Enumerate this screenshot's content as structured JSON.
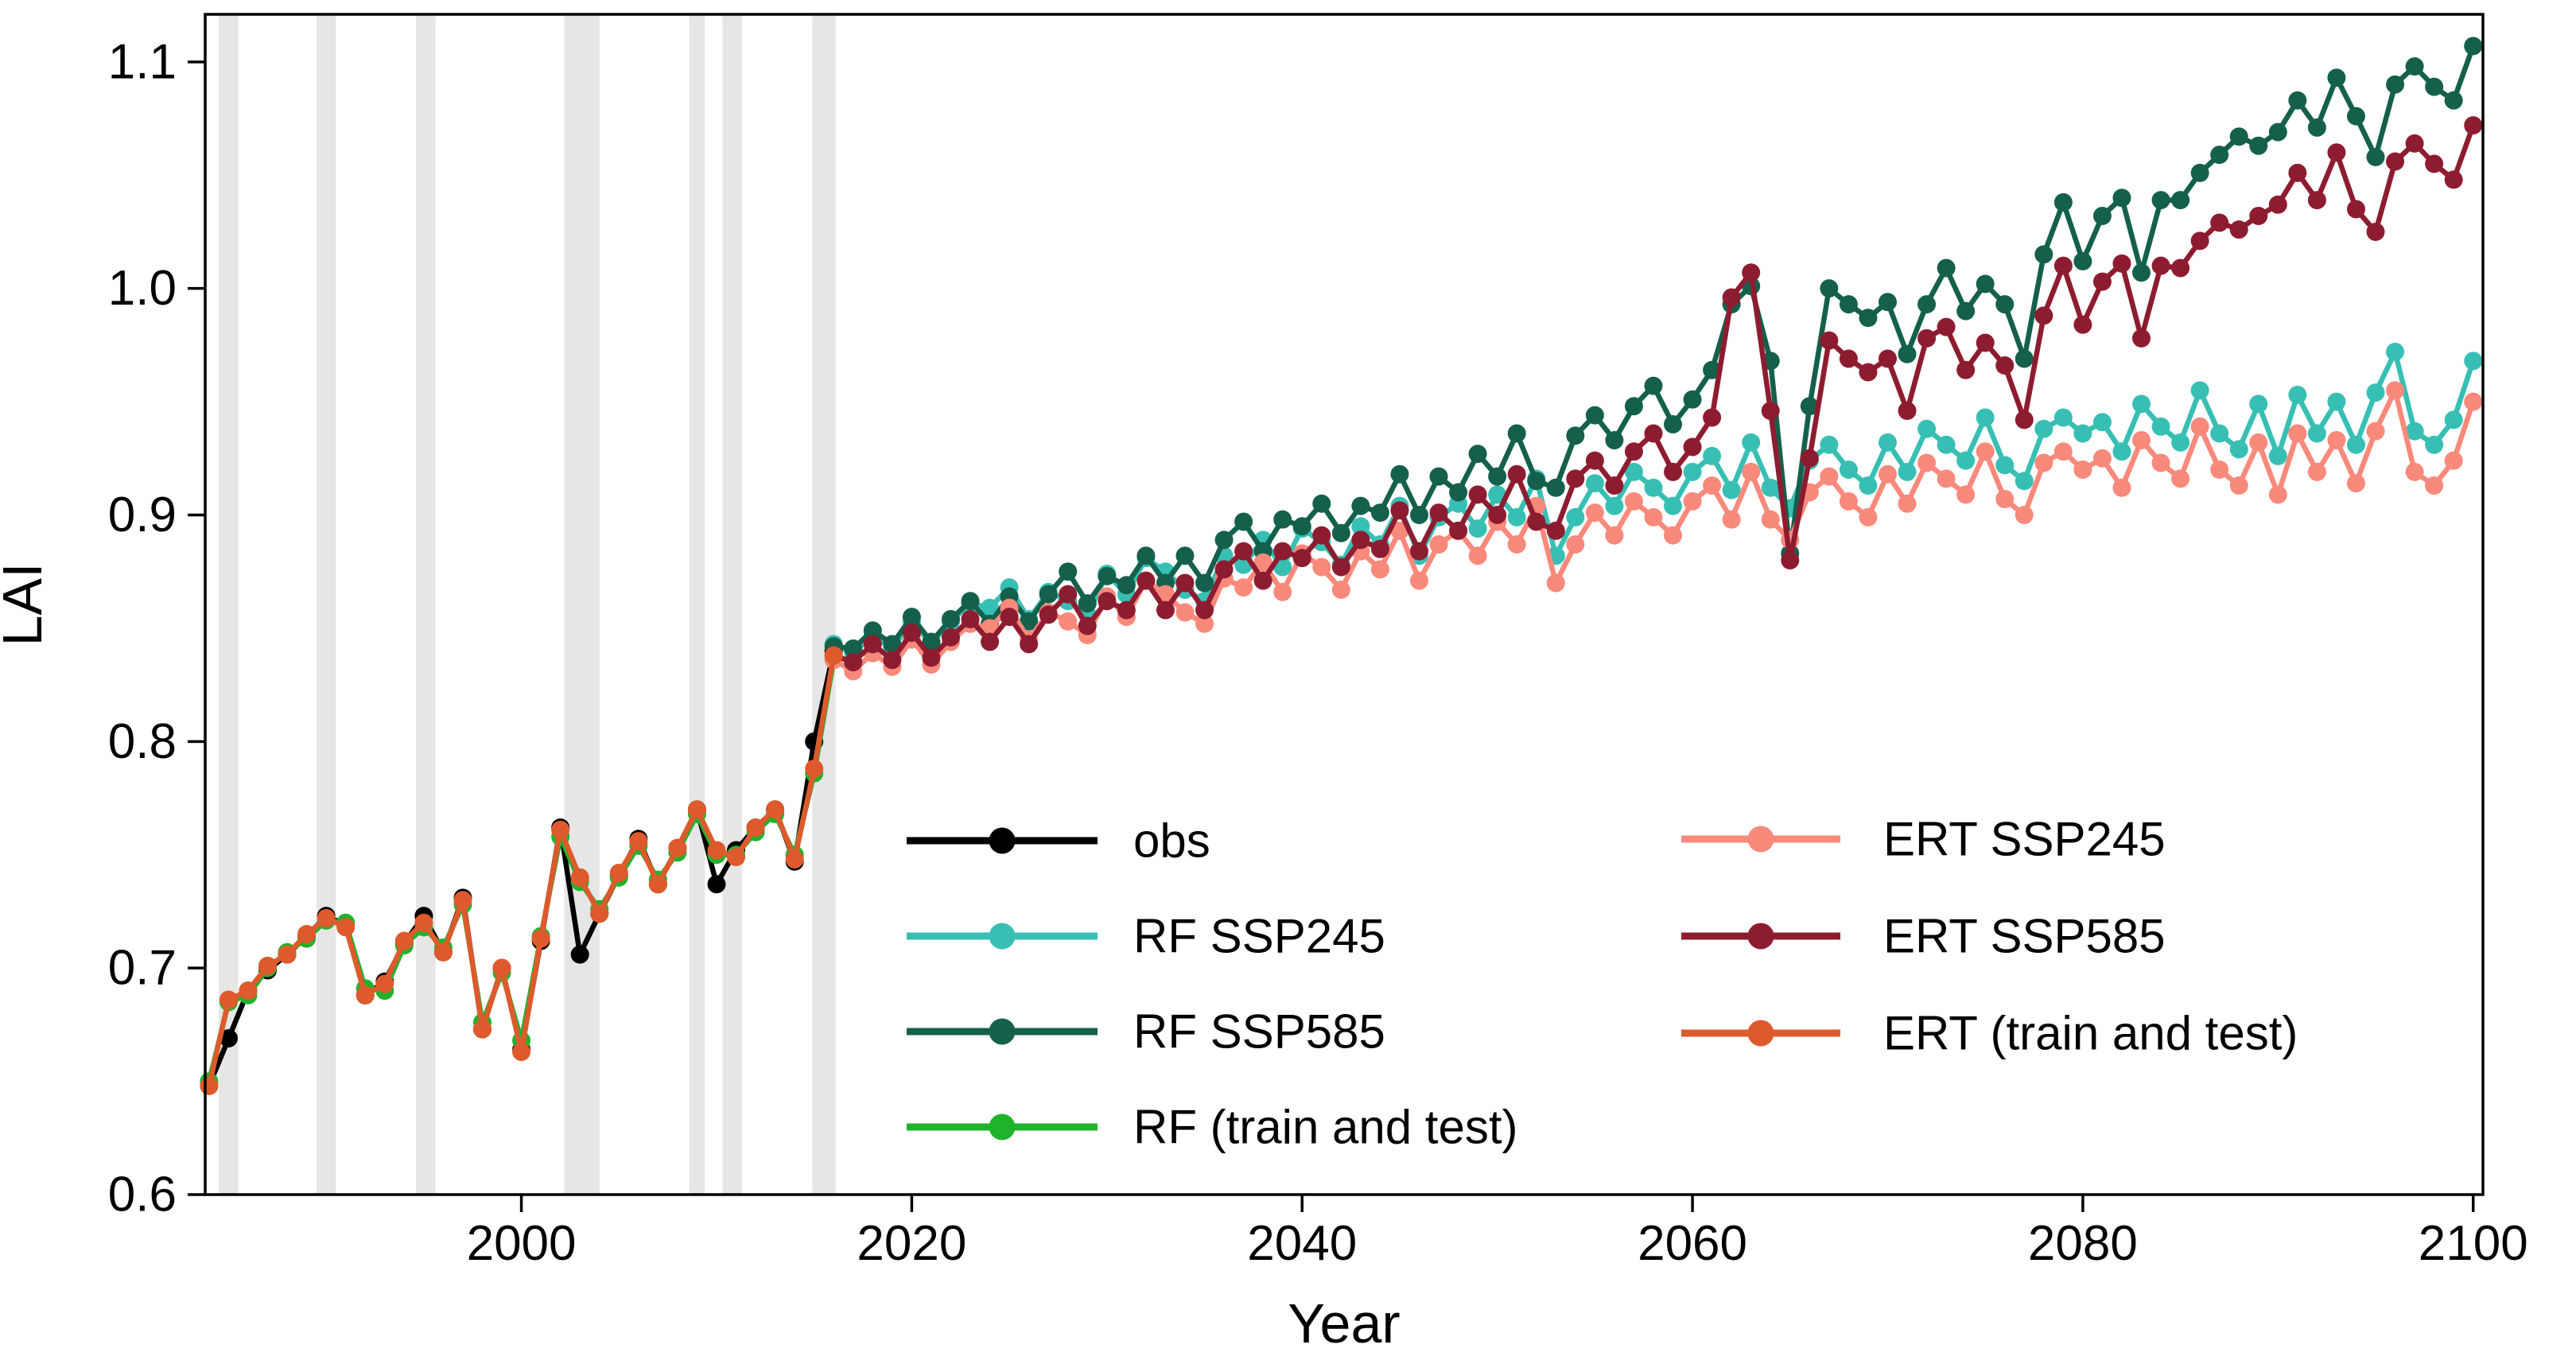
{
  "chart_data": {
    "type": "line",
    "title": "",
    "xlabel": "Year",
    "ylabel": "LAI",
    "xlim": [
      1983.8,
      2100.5
    ],
    "ylim": [
      0.6,
      1.121
    ],
    "xticks": [
      2000,
      2020,
      2040,
      2060,
      2080,
      2100
    ],
    "yticks": [
      "0.6",
      "0.7",
      "0.8",
      "0.9",
      "1.0",
      "1.1"
    ],
    "grid": false,
    "background_color": "#ffffff",
    "band_color": "#e6e6e6",
    "highlight_bands": [
      {
        "from": 1984.5,
        "to": 1985.5
      },
      {
        "from": 1989.5,
        "to": 1990.5
      },
      {
        "from": 1994.6,
        "to": 1995.6
      },
      {
        "from": 2002.2,
        "to": 2004.0
      },
      {
        "from": 2008.6,
        "to": 2009.4
      },
      {
        "from": 2010.3,
        "to": 2011.3
      },
      {
        "from": 2014.9,
        "to": 2016.1
      }
    ],
    "legend": {
      "position": "lower right inside",
      "columns": [
        [
          "obs",
          "RF SSP245",
          "RF SSP585",
          "RF (train and test)"
        ],
        [
          "ERT SSP245",
          "ERT SSP585",
          "ERT (train and test)"
        ]
      ]
    },
    "series": [
      {
        "name": "obs",
        "label": "obs",
        "color": "#000000",
        "start_year": 1984,
        "values": [
          0.648,
          0.669,
          0.69,
          0.699,
          0.706,
          0.714,
          0.723,
          0.719,
          0.688,
          0.694,
          0.711,
          0.723,
          0.707,
          0.731,
          0.673,
          0.7,
          0.664,
          0.712,
          0.762,
          0.706,
          0.724,
          0.741,
          0.757,
          0.737,
          0.753,
          0.77,
          0.737,
          0.752,
          0.762,
          0.77,
          0.747,
          0.8,
          0.84
        ]
      },
      {
        "name": "rf_ssp245",
        "label": "RF SSP245",
        "color": "#38BFB4",
        "start_year": 2016,
        "values": [
          0.843,
          0.839,
          0.847,
          0.841,
          0.853,
          0.843,
          0.853,
          0.861,
          0.859,
          0.868,
          0.854,
          0.866,
          0.862,
          0.856,
          0.874,
          0.865,
          0.881,
          0.875,
          0.867,
          0.862,
          0.882,
          0.878,
          0.889,
          0.877,
          0.894,
          0.888,
          0.878,
          0.895,
          0.887,
          0.904,
          0.882,
          0.899,
          0.905,
          0.894,
          0.909,
          0.899,
          0.916,
          0.882,
          0.899,
          0.914,
          0.904,
          0.919,
          0.912,
          0.904,
          0.919,
          0.926,
          0.911,
          0.932,
          0.912,
          0.903,
          0.924,
          0.931,
          0.92,
          0.913,
          0.932,
          0.919,
          0.938,
          0.931,
          0.924,
          0.943,
          0.922,
          0.915,
          0.938,
          0.943,
          0.936,
          0.941,
          0.928,
          0.949,
          0.939,
          0.932,
          0.955,
          0.936,
          0.929,
          0.949,
          0.926,
          0.953,
          0.936,
          0.95,
          0.931,
          0.954,
          0.972,
          0.937,
          0.931,
          0.942,
          0.968
        ]
      },
      {
        "name": "rf_ssp585",
        "label": "RF SSP585",
        "color": "#14604C",
        "start_year": 2016,
        "values": [
          0.842,
          0.841,
          0.849,
          0.843,
          0.855,
          0.844,
          0.854,
          0.862,
          0.852,
          0.864,
          0.853,
          0.865,
          0.875,
          0.861,
          0.873,
          0.869,
          0.882,
          0.87,
          0.882,
          0.87,
          0.889,
          0.897,
          0.884,
          0.898,
          0.895,
          0.905,
          0.892,
          0.904,
          0.901,
          0.918,
          0.9,
          0.917,
          0.91,
          0.927,
          0.917,
          0.936,
          0.915,
          0.912,
          0.935,
          0.944,
          0.933,
          0.948,
          0.957,
          0.94,
          0.951,
          0.964,
          0.993,
          1.001,
          0.968,
          0.883,
          0.948,
          1.0,
          0.993,
          0.987,
          0.994,
          0.971,
          0.993,
          1.009,
          0.99,
          1.002,
          0.993,
          0.969,
          1.015,
          1.038,
          1.012,
          1.032,
          1.04,
          1.007,
          1.039,
          1.039,
          1.051,
          1.059,
          1.067,
          1.063,
          1.069,
          1.083,
          1.071,
          1.093,
          1.076,
          1.058,
          1.09,
          1.098,
          1.089,
          1.083,
          1.107
        ]
      },
      {
        "name": "rf_train",
        "label": "RF (train and test)",
        "color": "#21B22C",
        "start_year": 1984,
        "values": [
          0.65,
          0.685,
          0.688,
          0.7,
          0.707,
          0.713,
          0.721,
          0.72,
          0.691,
          0.69,
          0.71,
          0.718,
          0.709,
          0.728,
          0.676,
          0.698,
          0.668,
          0.714,
          0.758,
          0.738,
          0.726,
          0.74,
          0.754,
          0.739,
          0.751,
          0.768,
          0.75,
          0.75,
          0.76,
          0.768,
          0.75,
          0.786,
          0.836
        ]
      },
      {
        "name": "ert_ssp245",
        "label": "ERT SSP245",
        "color": "#F9897B",
        "start_year": 2016,
        "values": [
          0.836,
          0.831,
          0.839,
          0.833,
          0.845,
          0.834,
          0.844,
          0.852,
          0.85,
          0.859,
          0.845,
          0.857,
          0.853,
          0.847,
          0.864,
          0.855,
          0.871,
          0.865,
          0.857,
          0.852,
          0.872,
          0.868,
          0.879,
          0.866,
          0.883,
          0.877,
          0.867,
          0.884,
          0.876,
          0.893,
          0.871,
          0.887,
          0.893,
          0.882,
          0.897,
          0.887,
          0.904,
          0.87,
          0.887,
          0.901,
          0.891,
          0.906,
          0.899,
          0.891,
          0.906,
          0.913,
          0.898,
          0.919,
          0.898,
          0.889,
          0.91,
          0.917,
          0.906,
          0.899,
          0.918,
          0.905,
          0.923,
          0.916,
          0.909,
          0.928,
          0.907,
          0.9,
          0.923,
          0.928,
          0.92,
          0.925,
          0.912,
          0.933,
          0.923,
          0.916,
          0.939,
          0.92,
          0.913,
          0.932,
          0.909,
          0.936,
          0.919,
          0.933,
          0.914,
          0.937,
          0.955,
          0.919,
          0.913,
          0.924,
          0.95
        ]
      },
      {
        "name": "ert_ssp585",
        "label": "ERT SSP585",
        "color": "#8E1C30",
        "start_year": 2016,
        "values": [
          0.838,
          0.835,
          0.843,
          0.836,
          0.848,
          0.837,
          0.846,
          0.854,
          0.844,
          0.855,
          0.843,
          0.856,
          0.865,
          0.851,
          0.862,
          0.858,
          0.871,
          0.858,
          0.87,
          0.858,
          0.876,
          0.884,
          0.871,
          0.884,
          0.881,
          0.891,
          0.877,
          0.889,
          0.885,
          0.902,
          0.884,
          0.901,
          0.893,
          0.909,
          0.9,
          0.918,
          0.897,
          0.893,
          0.916,
          0.924,
          0.913,
          0.928,
          0.936,
          0.919,
          0.93,
          0.943,
          0.996,
          1.007,
          0.946,
          0.88,
          0.925,
          0.977,
          0.969,
          0.963,
          0.969,
          0.946,
          0.978,
          0.983,
          0.964,
          0.976,
          0.966,
          0.942,
          0.988,
          1.01,
          0.984,
          1.003,
          1.011,
          0.978,
          1.01,
          1.009,
          1.021,
          1.029,
          1.026,
          1.032,
          1.037,
          1.051,
          1.039,
          1.06,
          1.035,
          1.025,
          1.056,
          1.064,
          1.055,
          1.048,
          1.072
        ]
      },
      {
        "name": "ert_train",
        "label": "ERT (train and test)",
        "color": "#DE5A2C",
        "start_year": 1984,
        "values": [
          0.648,
          0.686,
          0.69,
          0.701,
          0.706,
          0.715,
          0.722,
          0.718,
          0.688,
          0.693,
          0.712,
          0.72,
          0.707,
          0.73,
          0.673,
          0.7,
          0.663,
          0.713,
          0.761,
          0.74,
          0.724,
          0.742,
          0.756,
          0.737,
          0.753,
          0.77,
          0.752,
          0.749,
          0.762,
          0.77,
          0.748,
          0.788,
          0.838
        ]
      }
    ]
  }
}
